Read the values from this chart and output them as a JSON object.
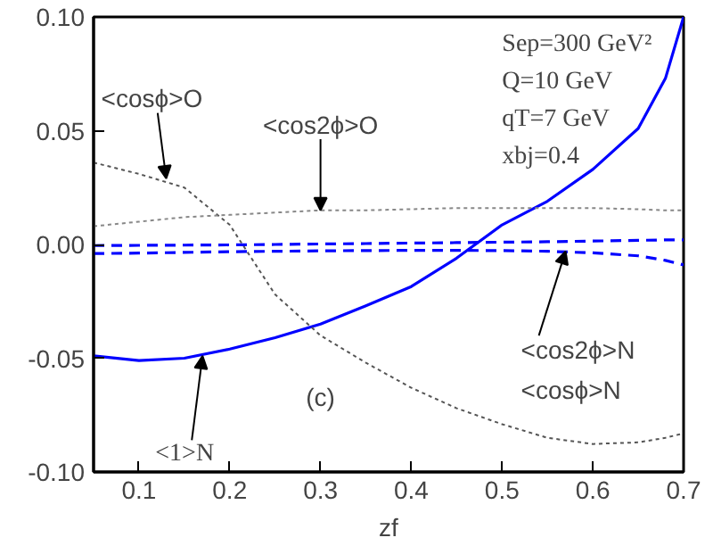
{
  "chart_data": {
    "type": "line",
    "xlabel": "zf",
    "x": [
      0.05,
      0.1,
      0.15,
      0.2,
      0.25,
      0.3,
      0.35,
      0.4,
      0.45,
      0.5,
      0.55,
      0.6,
      0.65,
      0.68,
      0.7
    ],
    "series": [
      {
        "color": "#0000ff",
        "line_style": "solid",
        "values": [
          -0.049,
          -0.051,
          -0.05,
          -0.046,
          -0.041,
          -0.035,
          -0.027,
          -0.0185,
          -0.006,
          0.0086,
          0.019,
          0.033,
          0.051,
          0.073,
          0.1
        ]
      },
      {
        "color": "#555555",
        "line_style": "dotted",
        "values": [
          0.036,
          0.031,
          0.025,
          0.0086,
          -0.022,
          -0.04,
          -0.052,
          -0.063,
          -0.072,
          -0.079,
          -0.085,
          -0.0877,
          -0.087,
          -0.085,
          -0.083
        ]
      },
      {
        "color": "#888888",
        "line_style": "dotted",
        "values": [
          0.008,
          0.01,
          0.012,
          0.013,
          0.014,
          0.015,
          0.015,
          0.0155,
          0.016,
          0.016,
          0.016,
          0.016,
          0.0155,
          0.015,
          0.015
        ]
      },
      {
        "color": "#0000ff",
        "line_style": "dashed",
        "values": [
          -0.0005,
          -0.0004,
          -0.0003,
          -0.0002,
          0.0,
          0.0002,
          0.0004,
          0.0006,
          0.0008,
          0.001,
          0.0012,
          0.0015,
          0.0018,
          0.002,
          0.002
        ]
      },
      {
        "color": "#0000ff",
        "line_style": "dashed",
        "values": [
          -0.004,
          -0.0038,
          -0.0035,
          -0.0032,
          -0.003,
          -0.0028,
          -0.0027,
          -0.0026,
          -0.0026,
          -0.0027,
          -0.003,
          -0.0037,
          -0.005,
          -0.007,
          -0.009
        ]
      }
    ],
    "xlim": [
      0.05,
      0.7
    ],
    "ylim": [
      -0.1,
      0.1
    ],
    "xticks": [
      0.1,
      0.2,
      0.3,
      0.4,
      0.5,
      0.6,
      0.7
    ],
    "yticks": [
      {
        "value": -0.1,
        "label": "-0.10"
      },
      {
        "value": -0.05,
        "label": "-0.05"
      },
      {
        "value": 0,
        "label": "0.00"
      },
      {
        "value": 0.05,
        "label": "0.05"
      },
      {
        "value": 0.1,
        "label": "0.10"
      }
    ],
    "grid": false,
    "annotations": [
      {
        "text": "<cosϕ>O",
        "x": 0.13,
        "y": 0.029
      },
      {
        "text": "<cos2ϕ>O",
        "x": 0.3,
        "y": 0.015
      },
      {
        "text": "<1>N",
        "x": 0.17,
        "y": -0.049
      },
      {
        "text": "<cos2ϕ>N",
        "x": 0.57,
        "y": -0.003
      },
      "<cosϕ>N",
      "(c)",
      "Sep=300 GeV²",
      "Q=10 GeV",
      "qT=7 GeV",
      "xbj=0.4"
    ]
  }
}
